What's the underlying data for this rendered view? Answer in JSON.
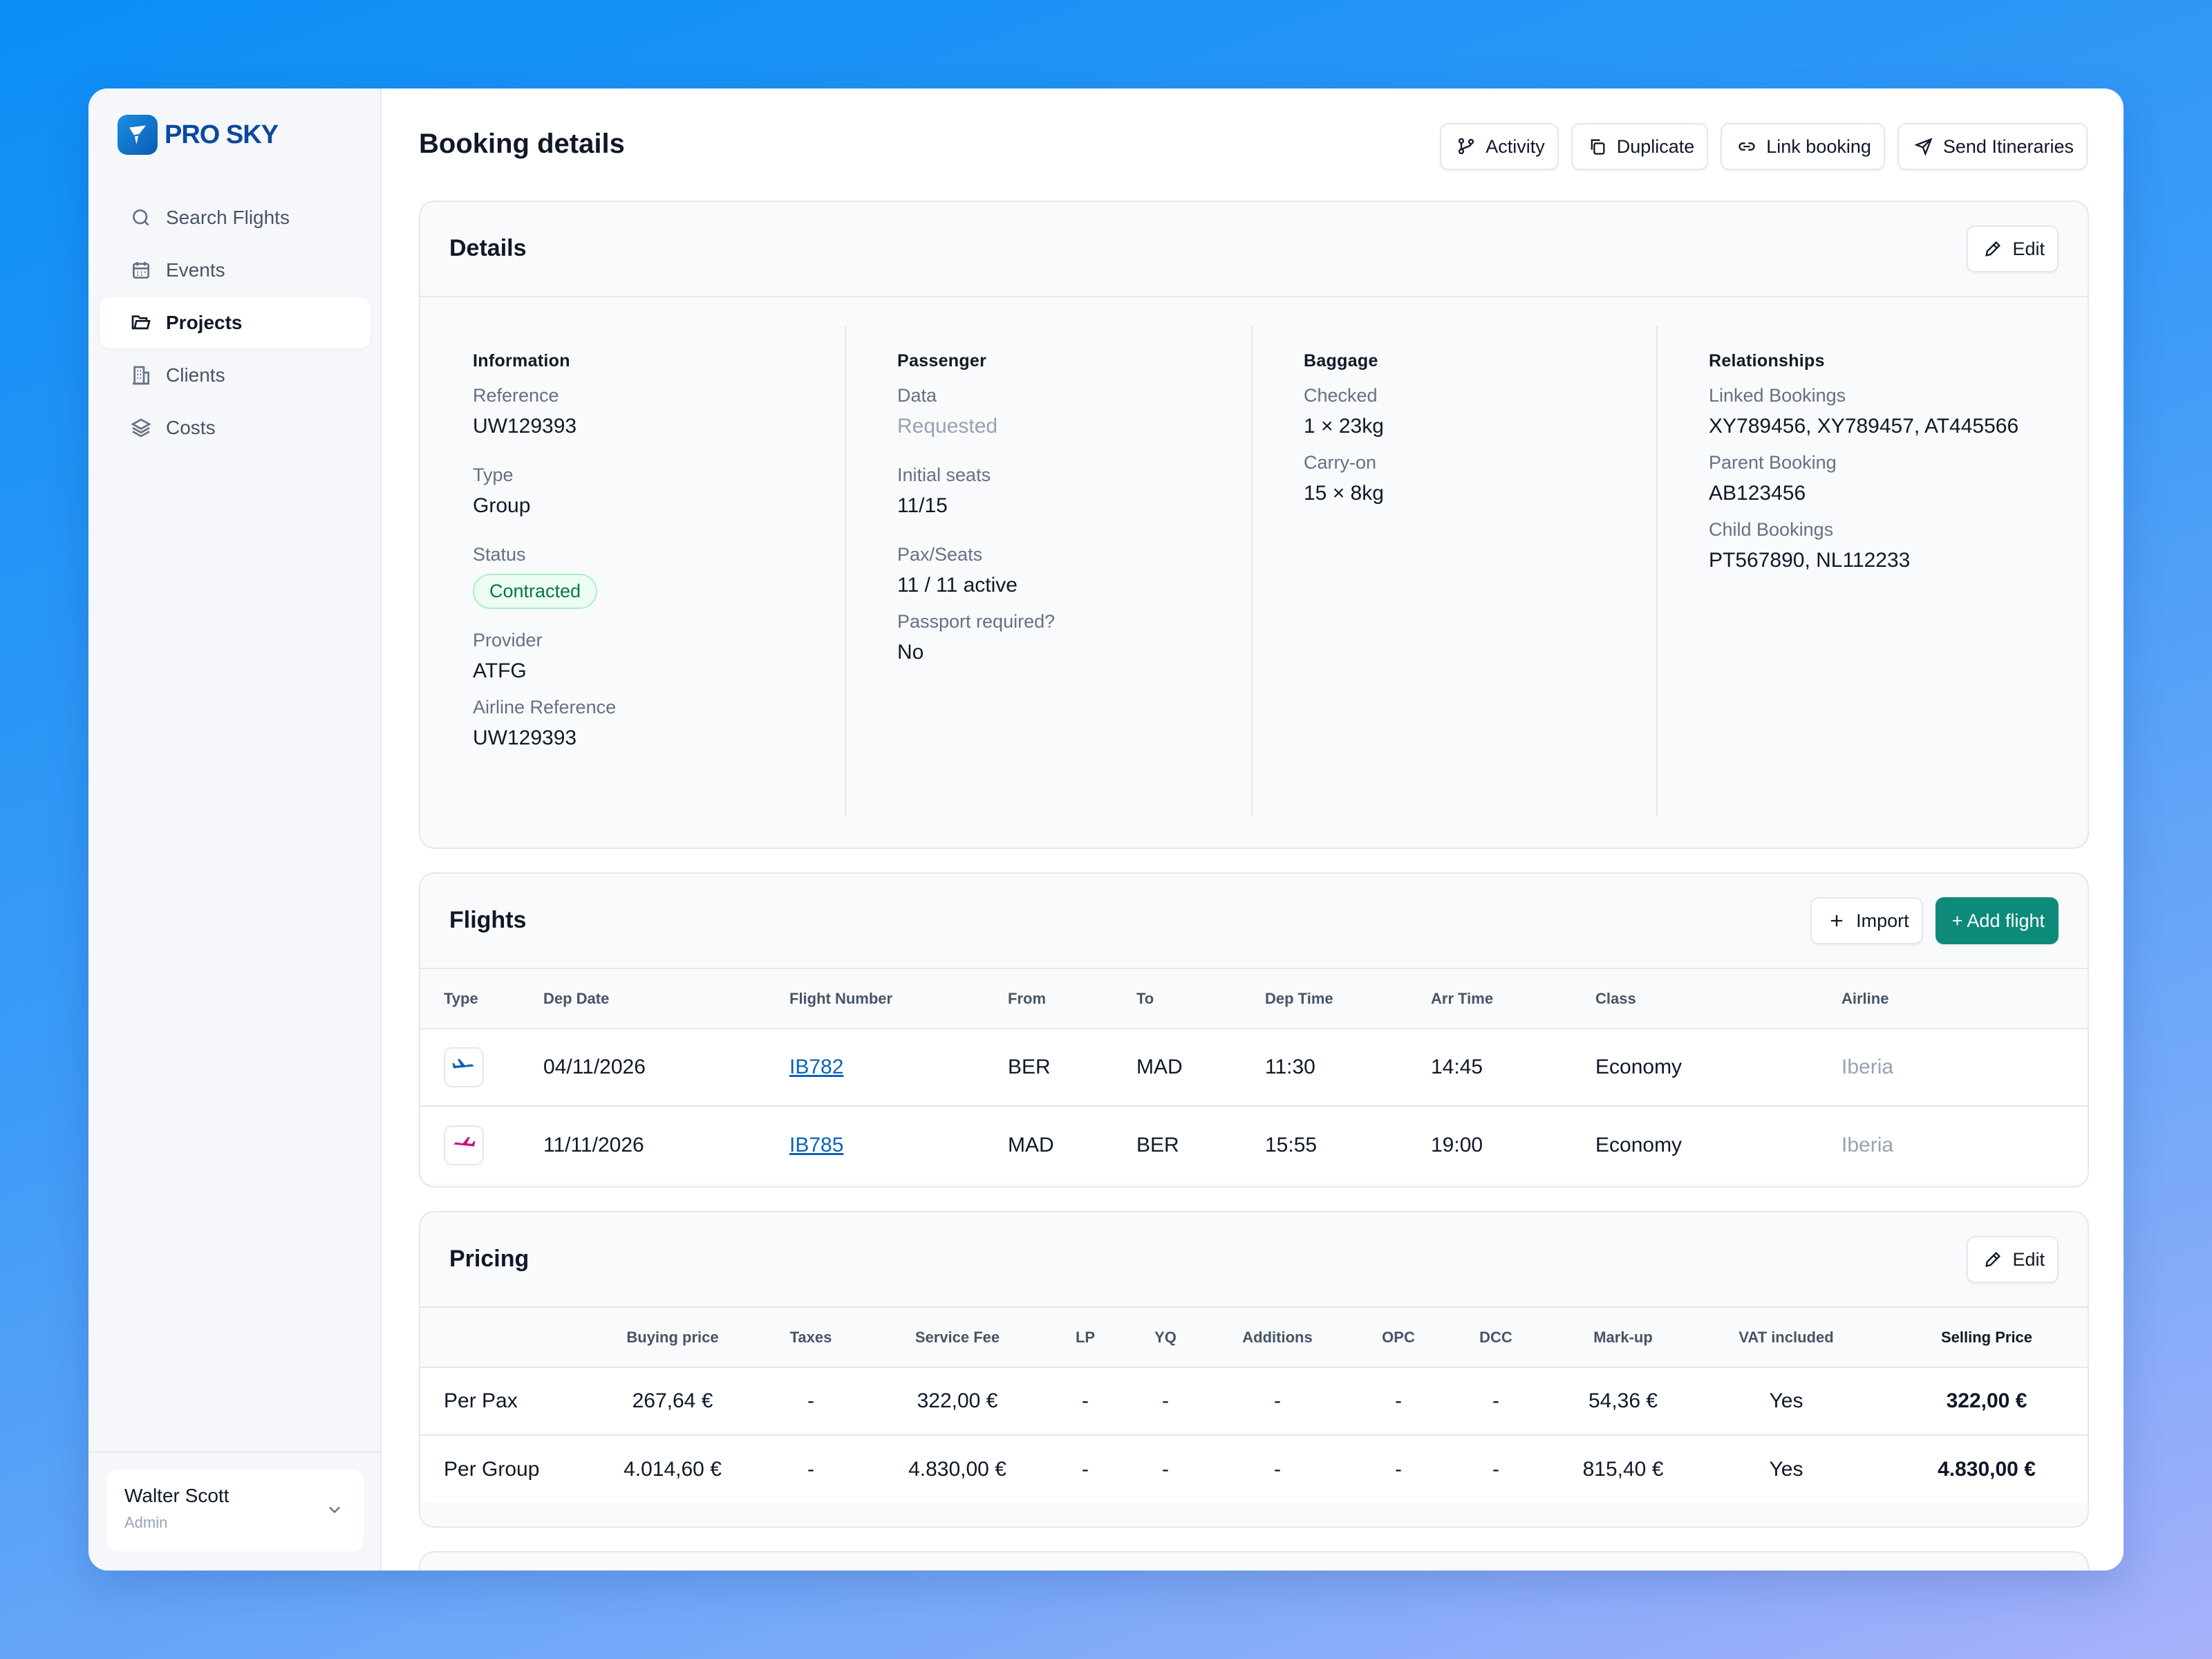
{
  "brand": {
    "logo_text": "PRO SKY"
  },
  "sidebar": {
    "items": [
      {
        "label": "Search Flights",
        "icon": "search-icon"
      },
      {
        "label": "Events",
        "icon": "calendar-icon"
      },
      {
        "label": "Projects",
        "icon": "folder-icon",
        "active": true
      },
      {
        "label": "Clients",
        "icon": "building-icon"
      },
      {
        "label": "Costs",
        "icon": "layers-icon"
      }
    ],
    "user": {
      "name": "Walter Scott",
      "role": "Admin"
    }
  },
  "header": {
    "title": "Booking details",
    "actions": {
      "activity": "Activity",
      "duplicate": "Duplicate",
      "link_booking": "Link booking",
      "send_itineraries": "Send Itineraries"
    }
  },
  "details": {
    "title": "Details",
    "edit_label": "Edit",
    "information": {
      "heading": "Information",
      "reference_label": "Reference",
      "reference": "UW129393",
      "type_label": "Type",
      "type": "Group",
      "status_label": "Status",
      "status": "Contracted",
      "provider_label": "Provider",
      "provider": "ATFG",
      "airline_ref_label": "Airline Reference",
      "airline_ref": "UW129393"
    },
    "passenger": {
      "heading": "Passenger",
      "data_label": "Data",
      "data": "Requested",
      "initial_seats_label": "Initial seats",
      "initial_seats": "11/15",
      "pax_seats_label": "Pax/Seats",
      "pax_seats": "11 / 11 active",
      "passport_label": "Passport required?",
      "passport": "No"
    },
    "baggage": {
      "heading": "Baggage",
      "checked_label": "Checked",
      "checked": "1 × 23kg",
      "carryon_label": "Carry-on",
      "carryon": "15 × 8kg"
    },
    "relationships": {
      "heading": "Relationships",
      "linked_label": "Linked Bookings",
      "linked": "XY789456, XY789457, AT445566",
      "parent_label": "Parent Booking",
      "parent": "AB123456",
      "child_label": "Child Bookings",
      "child": "PT567890, NL112233"
    }
  },
  "flights": {
    "title": "Flights",
    "import_label": "Import",
    "add_label": "+ Add flight",
    "columns": [
      "Type",
      "Dep Date",
      "Flight Number",
      "From",
      "To",
      "Dep Time",
      "Arr Time",
      "Class",
      "Airline"
    ],
    "rows": [
      {
        "type_icon": "departure-plane-icon",
        "dep_date": "04/11/2026",
        "flight_number": "IB782",
        "from": "BER",
        "to": "MAD",
        "dep_time": "11:30",
        "arr_time": "14:45",
        "class": "Economy",
        "airline": "Iberia"
      },
      {
        "type_icon": "return-plane-icon",
        "dep_date": "11/11/2026",
        "flight_number": "IB785",
        "from": "MAD",
        "to": "BER",
        "dep_time": "15:55",
        "arr_time": "19:00",
        "class": "Economy",
        "airline": "Iberia"
      }
    ]
  },
  "pricing": {
    "title": "Pricing",
    "edit_label": "Edit",
    "columns": [
      "",
      "Buying price",
      "Taxes",
      "Service Fee",
      "LP",
      "YQ",
      "Additions",
      "OPC",
      "DCC",
      "Mark-up",
      "VAT included",
      "Selling Price"
    ],
    "rows": [
      {
        "label": "Per Pax",
        "buying": "267,64 €",
        "taxes": "-",
        "service_fee": "322,00 €",
        "lp": "-",
        "yq": "-",
        "additions": "-",
        "opc": "-",
        "dcc": "-",
        "markup": "54,36 €",
        "vat": "Yes",
        "selling": "322,00 €"
      },
      {
        "label": "Per Group",
        "buying": "4.014,60 €",
        "taxes": "-",
        "service_fee": "4.830,00 €",
        "lp": "-",
        "yq": "-",
        "additions": "-",
        "opc": "-",
        "dcc": "-",
        "markup": "815,40 €",
        "vat": "Yes",
        "selling": "4.830,00 €"
      }
    ]
  },
  "colors": {
    "accent": "#0e8a7a",
    "brand": "#0a4a9e",
    "link": "#0b63b6",
    "status_green": "#067647"
  }
}
